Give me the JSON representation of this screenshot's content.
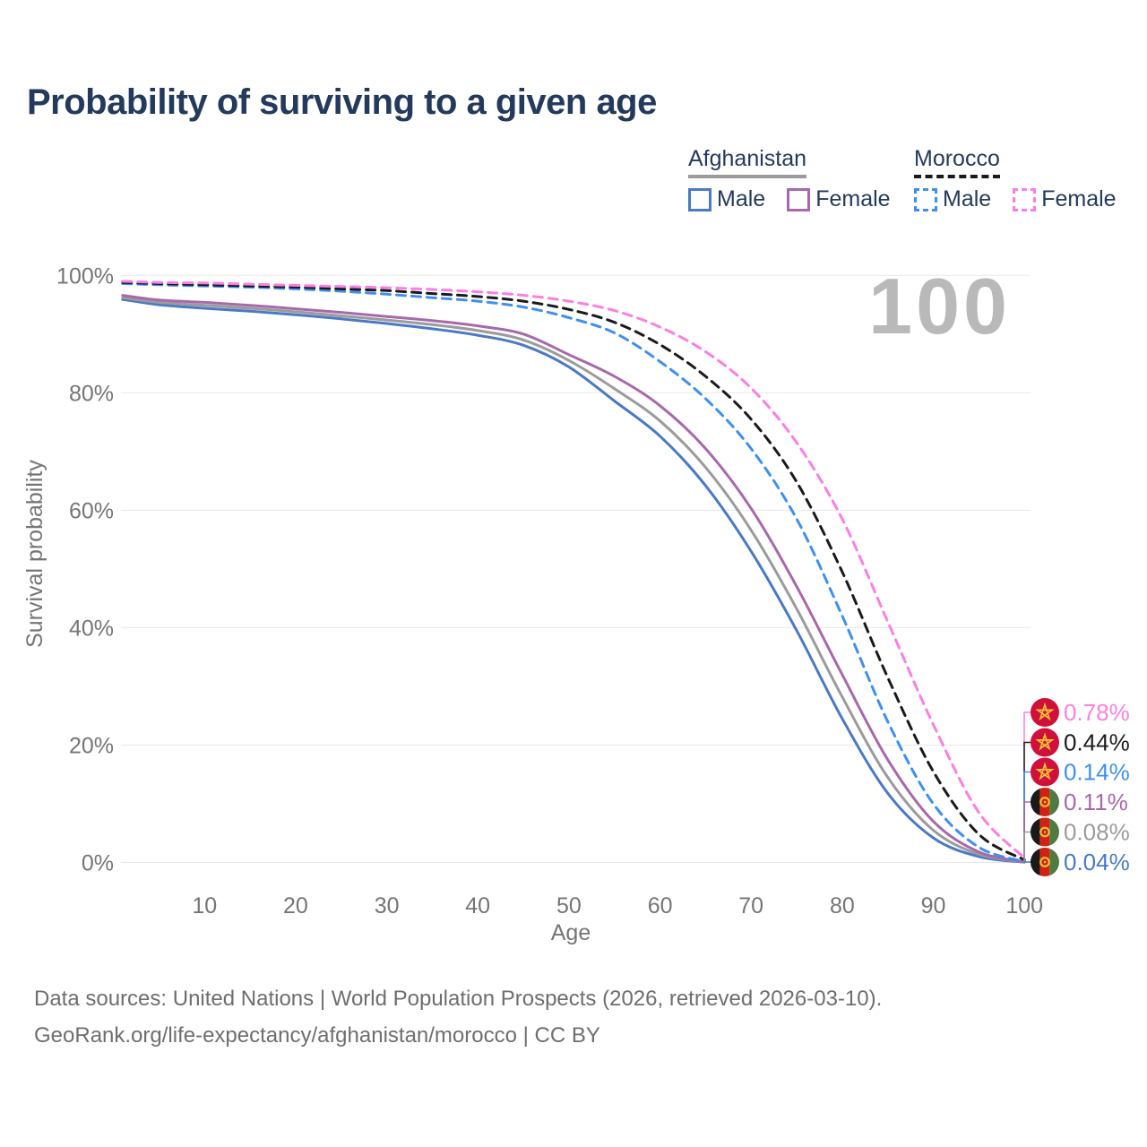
{
  "page": {
    "title": "Probability of surviving to a given age",
    "watermark": "100",
    "footer_line1": "Data sources: United Nations | World Population Prospects (2026, retrieved 2026-03-10).",
    "footer_line2": "GeoRank.org/life-expectancy/afghanistan/morocco | CC BY"
  },
  "legend": {
    "groups": [
      {
        "title": "Afghanistan",
        "underline_style": "solid",
        "underline_color": "#9a9a9a",
        "items": [
          {
            "label": "Male",
            "color": "#4a79c5",
            "line_style": "solid"
          },
          {
            "label": "Female",
            "color": "#a868ac",
            "line_style": "solid"
          }
        ]
      },
      {
        "title": "Morocco",
        "underline_style": "dashed",
        "underline_color": "#1a1a1a",
        "items": [
          {
            "label": "Male",
            "color": "#3e90f0",
            "line_style": "dashed"
          },
          {
            "label": "Female",
            "color": "#fc7ee4",
            "line_style": "dashed"
          }
        ]
      }
    ]
  },
  "chart_data": {
    "type": "line",
    "title": "Probability of surviving to a given age",
    "xlabel": "Age",
    "ylabel": "Survival probability",
    "xlim": [
      1,
      100
    ],
    "ylim": [
      0,
      100
    ],
    "grid": "horizontal",
    "legend_position": "top-right",
    "x_ticks": [
      10,
      20,
      30,
      40,
      50,
      60,
      70,
      80,
      90,
      100
    ],
    "y_ticks": [
      0,
      20,
      40,
      60,
      80,
      100
    ],
    "y_tick_labels": [
      "0%",
      "20%",
      "40%",
      "60%",
      "80%",
      "100%"
    ],
    "x": [
      1,
      5,
      10,
      15,
      20,
      25,
      30,
      35,
      40,
      45,
      50,
      55,
      60,
      65,
      70,
      75,
      80,
      85,
      90,
      95,
      100
    ],
    "series": [
      {
        "id": "afghanistan-male",
        "name": "Afghanistan Male",
        "country": "Afghanistan",
        "sex": "Male",
        "line_style": "solid",
        "color": "#4a79c5",
        "flag": "afghanistan",
        "end_label": "0.04%",
        "values": [
          95.9,
          95.0,
          94.4,
          93.9,
          93.3,
          92.6,
          91.8,
          90.9,
          89.8,
          88.1,
          84.4,
          78.6,
          72.6,
          64.2,
          53.0,
          39.5,
          24.5,
          11.8,
          4.2,
          1.0,
          0.04
        ]
      },
      {
        "id": "afghanistan-both",
        "name": "Afghanistan",
        "country": "Afghanistan",
        "sex": "Both",
        "line_style": "solid",
        "color": "#9b9b9b",
        "flag": "afghanistan",
        "end_label": "0.08%",
        "values": [
          96.2,
          95.4,
          94.9,
          94.4,
          93.8,
          93.1,
          92.4,
          91.6,
          90.6,
          89.0,
          85.5,
          80.7,
          75.2,
          67.3,
          56.6,
          43.2,
          28.2,
          14.5,
          5.5,
          1.4,
          0.08
        ]
      },
      {
        "id": "afghanistan-female",
        "name": "Afghanistan Female",
        "country": "Afghanistan",
        "sex": "Female",
        "line_style": "solid",
        "color": "#a868ac",
        "flag": "afghanistan",
        "end_label": "0.11%",
        "values": [
          96.6,
          95.8,
          95.4,
          94.9,
          94.3,
          93.7,
          93.0,
          92.3,
          91.4,
          90.0,
          86.5,
          82.8,
          77.8,
          70.5,
          60.3,
          47.0,
          32.0,
          17.5,
          7.0,
          1.8,
          0.11
        ]
      },
      {
        "id": "morocco-male",
        "name": "Morocco Male",
        "country": "Morocco",
        "sex": "Male",
        "line_style": "dashed",
        "color": "#3e90f0",
        "flag": "morocco",
        "end_label": "0.14%",
        "values": [
          98.6,
          98.4,
          98.2,
          98.0,
          97.7,
          97.3,
          96.8,
          96.2,
          95.6,
          94.6,
          92.8,
          90.2,
          85.3,
          79.0,
          70.5,
          58.5,
          42.0,
          24.0,
          10.0,
          2.6,
          0.14
        ]
      },
      {
        "id": "morocco-both",
        "name": "Morocco",
        "country": "Morocco",
        "sex": "Both",
        "line_style": "dashed",
        "color": "#1a1a1a",
        "flag": "morocco",
        "end_label": "0.44%",
        "values": [
          98.8,
          98.6,
          98.4,
          98.2,
          98.0,
          97.7,
          97.4,
          96.9,
          96.4,
          95.6,
          94.2,
          92.0,
          88.2,
          82.8,
          75.5,
          64.8,
          49.5,
          31.5,
          15.5,
          4.8,
          0.44
        ]
      },
      {
        "id": "morocco-female",
        "name": "Morocco Female",
        "country": "Morocco",
        "sex": "Female",
        "line_style": "dashed",
        "color": "#fc7ee4",
        "flag": "morocco",
        "end_label": "0.78%",
        "values": [
          99.0,
          98.8,
          98.7,
          98.5,
          98.3,
          98.1,
          97.9,
          97.6,
          97.2,
          96.6,
          95.6,
          94.0,
          91.2,
          87.0,
          80.8,
          71.5,
          58.5,
          41.0,
          23.5,
          8.5,
          0.78
        ]
      }
    ]
  }
}
